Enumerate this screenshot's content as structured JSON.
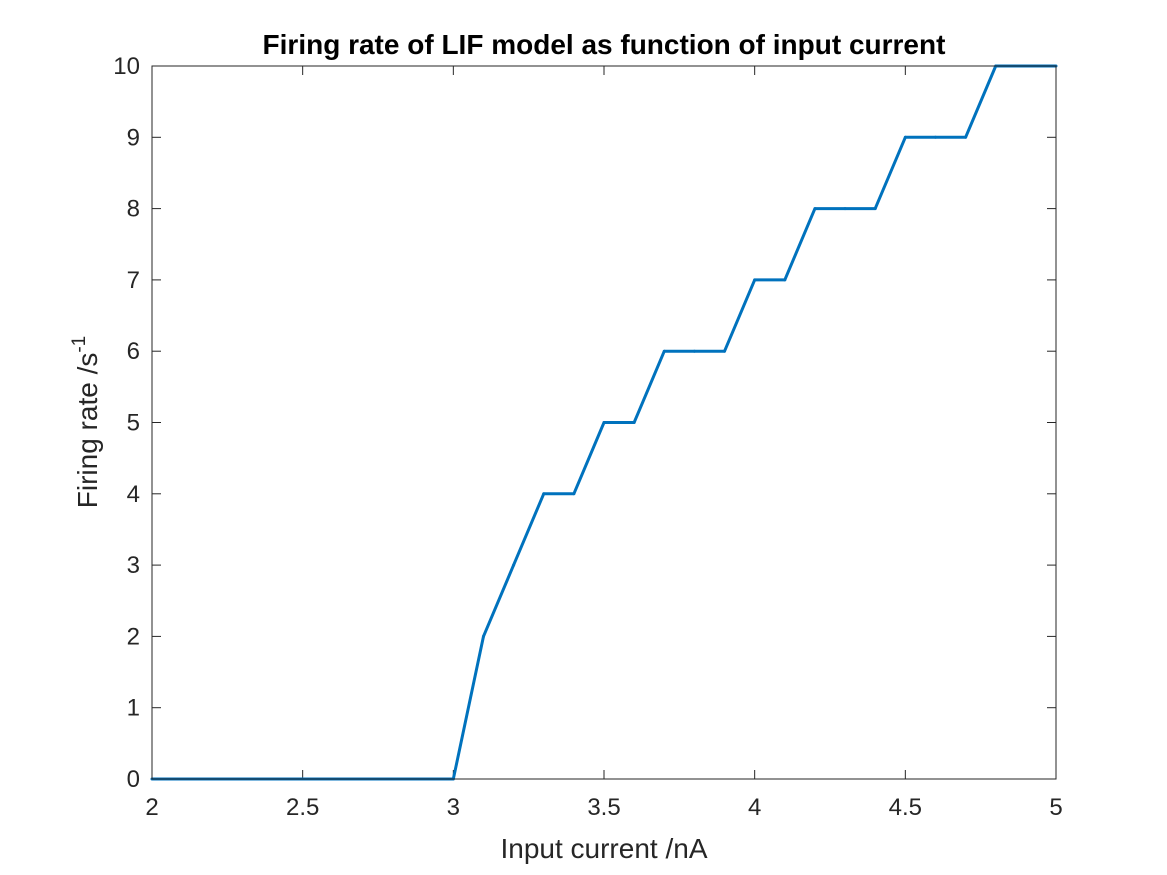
{
  "chart_data": {
    "type": "line",
    "title": "Firing rate of LIF model as function of input current",
    "xlabel": "Input current /nA",
    "ylabel": "Firing rate /s",
    "ylabel_superscript": "-1",
    "xlim": [
      2,
      5
    ],
    "ylim": [
      0,
      10
    ],
    "xticks": [
      "2",
      "2.5",
      "3",
      "3.5",
      "4",
      "4.5",
      "5"
    ],
    "yticks": [
      "0",
      "1",
      "2",
      "3",
      "4",
      "5",
      "6",
      "7",
      "8",
      "9",
      "10"
    ],
    "grid": false,
    "line_color": "#0072BD",
    "series": [
      {
        "x": [
          2.0,
          2.1,
          2.2,
          2.3,
          2.4,
          2.5,
          2.6,
          2.7,
          2.8,
          2.9,
          3.0,
          3.1,
          3.2,
          3.3,
          3.4,
          3.5,
          3.6,
          3.7,
          3.8,
          3.9,
          4.0,
          4.1,
          4.2,
          4.3,
          4.4,
          4.5,
          4.6,
          4.7,
          4.8,
          4.9,
          5.0
        ],
        "y": [
          0,
          0,
          0,
          0,
          0,
          0,
          0,
          0,
          0,
          0,
          0,
          2,
          3,
          4,
          4,
          5,
          5,
          6,
          6,
          6,
          7,
          7,
          8,
          8,
          8,
          9,
          9,
          9,
          10,
          10,
          10
        ]
      }
    ]
  }
}
